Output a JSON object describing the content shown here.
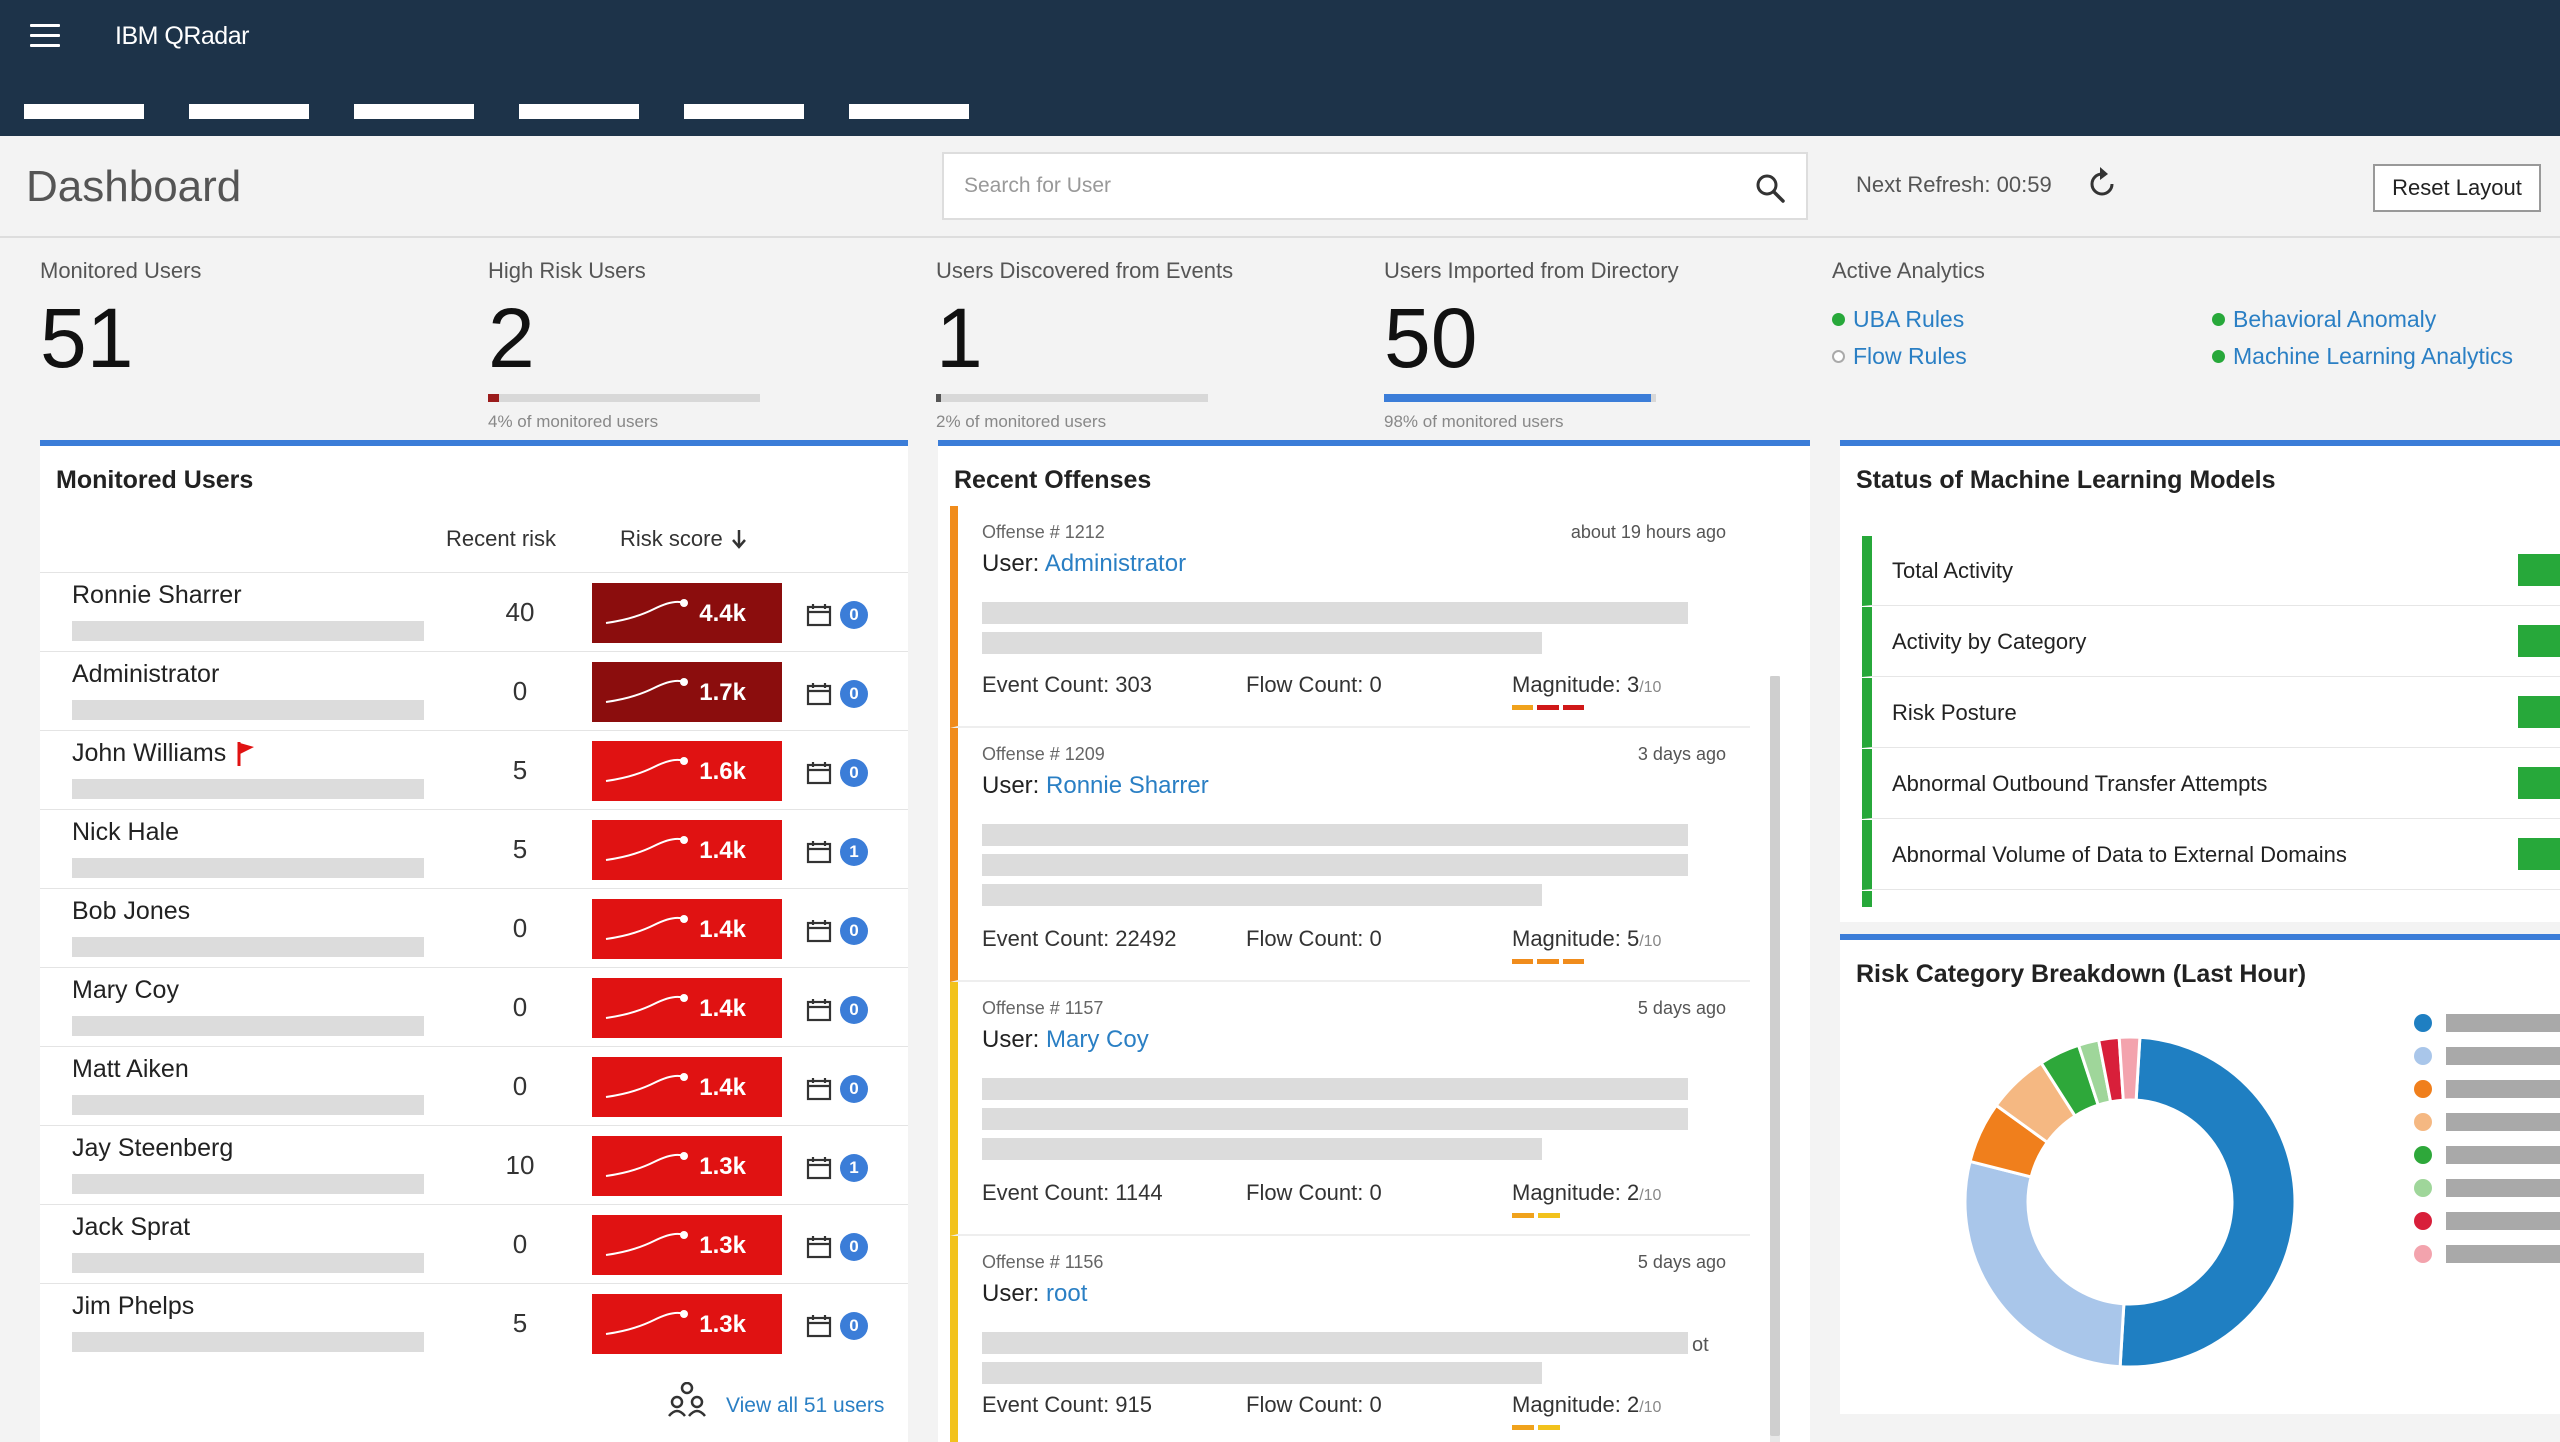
{
  "app": {
    "title": "IBM QRadar"
  },
  "header": {
    "page_title": "Dashboard",
    "search_placeholder": "Search for User",
    "refresh_label": "Next Refresh:",
    "refresh_value": "00:59",
    "reset_label": "Reset Layout"
  },
  "stats": [
    {
      "label": "Monitored Users",
      "value": "51",
      "sub": "",
      "percent": 0
    },
    {
      "label": "High Risk Users",
      "value": "2",
      "sub": "4% of monitored users",
      "percent": 4,
      "color": "#9b1c1c"
    },
    {
      "label": "Users Discovered from Events",
      "value": "1",
      "sub": "2% of monitored users",
      "percent": 2,
      "color": "#555555"
    },
    {
      "label": "Users Imported from Directory",
      "value": "50",
      "sub": "98% of monitored users",
      "percent": 98,
      "color": "#3b7dd8"
    }
  ],
  "analytics": {
    "title": "Active Analytics",
    "items": [
      {
        "label": "UBA Rules",
        "active": true
      },
      {
        "label": "Behavioral Anomaly",
        "active": true
      },
      {
        "label": "Flow Rules",
        "active": false
      },
      {
        "label": "Machine Learning Analytics",
        "active": true
      }
    ]
  },
  "users_panel": {
    "title": "Monitored Users",
    "col_recent": "Recent risk",
    "col_score": "Risk score",
    "view_all": "View all 51 users",
    "users": [
      {
        "name": "Ronnie Sharrer",
        "recent": "40",
        "score": "4.4k",
        "color": "#8b0d0d",
        "badge": "0",
        "flag": false
      },
      {
        "name": "Administrator",
        "recent": "0",
        "score": "1.7k",
        "color": "#8b0d0d",
        "badge": "0",
        "flag": false
      },
      {
        "name": "John Williams",
        "recent": "5",
        "score": "1.6k",
        "color": "#e01212",
        "badge": "0",
        "flag": true
      },
      {
        "name": "Nick Hale",
        "recent": "5",
        "score": "1.4k",
        "color": "#e01212",
        "badge": "1",
        "flag": false
      },
      {
        "name": "Bob Jones",
        "recent": "0",
        "score": "1.4k",
        "color": "#e01212",
        "badge": "0",
        "flag": false
      },
      {
        "name": "Mary Coy",
        "recent": "0",
        "score": "1.4k",
        "color": "#e01212",
        "badge": "0",
        "flag": false
      },
      {
        "name": "Matt Aiken",
        "recent": "0",
        "score": "1.4k",
        "color": "#e01212",
        "badge": "0",
        "flag": false
      },
      {
        "name": "Jay Steenberg",
        "recent": "10",
        "score": "1.3k",
        "color": "#e01212",
        "badge": "1",
        "flag": false
      },
      {
        "name": "Jack Sprat",
        "recent": "0",
        "score": "1.3k",
        "color": "#e01212",
        "badge": "0",
        "flag": false
      },
      {
        "name": "Jim Phelps",
        "recent": "5",
        "score": "1.3k",
        "color": "#e01212",
        "badge": "0",
        "flag": false
      }
    ]
  },
  "offenses_panel": {
    "title": "Recent Offenses",
    "offenses": [
      {
        "id": "Offense # 1212",
        "time": "about 19 hours ago",
        "user_prefix": "User:",
        "user": "Administrator",
        "event_count": "Event Count: 303",
        "flow_count": "Flow Count: 0",
        "magnitude_label": "Magnitude: 3",
        "magnitude_max": "/10",
        "border": "#f08c1c",
        "mag_colors": [
          "#f0a21c",
          "#d01818",
          "#d01818"
        ]
      },
      {
        "id": "Offense # 1209",
        "time": "3 days ago",
        "user_prefix": "User:",
        "user": "Ronnie Sharrer",
        "event_count": "Event Count: 22492",
        "flow_count": "Flow Count: 0",
        "magnitude_label": "Magnitude: 5",
        "magnitude_max": "/10",
        "border": "#f08c1c",
        "mag_colors": [
          "#f08c1c",
          "#f08c1c",
          "#f08c1c"
        ]
      },
      {
        "id": "Offense # 1157",
        "time": "5 days ago",
        "user_prefix": "User:",
        "user": "Mary Coy",
        "event_count": "Event Count: 1144",
        "flow_count": "Flow Count: 0",
        "magnitude_label": "Magnitude: 2",
        "magnitude_max": "/10",
        "border": "#f2c21c",
        "mag_colors": [
          "#f0a21c",
          "#f2c21c"
        ]
      },
      {
        "id": "Offense # 1156",
        "time": "5 days ago",
        "user_prefix": "User:",
        "user": "root",
        "event_count": "Event Count: 915",
        "flow_count": "Flow Count: 0",
        "magnitude_label": "Magnitude: 2",
        "magnitude_max": "/10",
        "border": "#f2c21c",
        "mag_colors": [
          "#f0a21c",
          "#f2c21c"
        ],
        "trail": "ot"
      }
    ]
  },
  "ml_panel": {
    "title": "Status of Machine Learning Models",
    "models": [
      "Total Activity",
      "Activity by Category",
      "Risk Posture",
      "Abnormal Outbound Transfer Attempts",
      "Abnormal Volume of Data to External Domains"
    ]
  },
  "risk_panel": {
    "title": "Risk Category Breakdown (Last Hour)",
    "slices": [
      {
        "value": 50,
        "color": "#1f7fc2"
      },
      {
        "value": 28,
        "color": "#a9c6ea"
      },
      {
        "value": 6,
        "color": "#f07f1c"
      },
      {
        "value": 6,
        "color": "#f5b882"
      },
      {
        "value": 4,
        "color": "#2ea83a"
      },
      {
        "value": 2,
        "color": "#9fd69a"
      },
      {
        "value": 2,
        "color": "#d81f3a"
      },
      {
        "value": 2,
        "color": "#f3a3ad"
      }
    ]
  }
}
